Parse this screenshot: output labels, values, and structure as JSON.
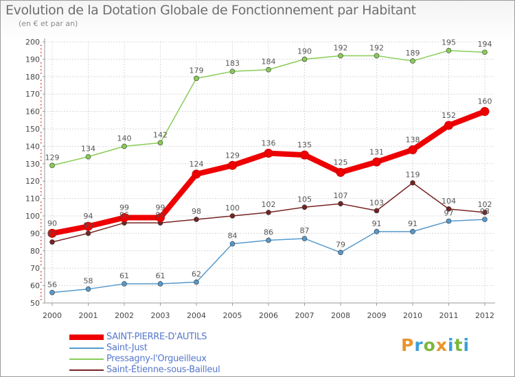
{
  "header": {
    "title": "Evolution de la Dotation Globale de Fonctionnement par Habitant",
    "subtitle": "(en € et par an)"
  },
  "brand": {
    "letters": [
      "P",
      "r",
      "o",
      "x",
      "i",
      "t",
      "i"
    ],
    "colors": [
      "#e8942c",
      "#3aa0d8",
      "#7ab83c",
      "#e8942c",
      "#3aa0d8",
      "#7ab83c",
      "#3aa0d8"
    ]
  },
  "chart_data": {
    "type": "line",
    "title": "Evolution de la Dotation Globale de Fonctionnement par Habitant",
    "subtitle": "(en € et par an)",
    "xlabel": "",
    "ylabel": "",
    "x": [
      "2000",
      "2001",
      "2002",
      "2003",
      "2004",
      "2005",
      "2006",
      "2007",
      "2008",
      "2009",
      "2010",
      "2011",
      "2012"
    ],
    "ylim": [
      50,
      200
    ],
    "yticks": [
      50,
      60,
      70,
      80,
      90,
      100,
      110,
      120,
      130,
      140,
      150,
      160,
      170,
      180,
      190,
      200
    ],
    "grid": true,
    "legend_position": "bottom-left",
    "series": [
      {
        "name": "SAINT-PIERRE-D'AUTILS",
        "color": "#ee0000",
        "values": [
          90,
          94,
          99,
          99,
          124,
          129,
          136,
          135,
          125,
          131,
          138,
          152,
          160
        ]
      },
      {
        "name": "Saint-Just",
        "color": "#5599cc",
        "values": [
          56,
          58,
          61,
          61,
          62,
          84,
          86,
          87,
          79,
          91,
          91,
          97,
          98
        ]
      },
      {
        "name": "Pressagny-l'Orgueilleux",
        "color": "#88cc55",
        "values": [
          129,
          134,
          140,
          142,
          179,
          183,
          184,
          190,
          192,
          192,
          189,
          195,
          194
        ]
      },
      {
        "name": "Saint-Étienne-sous-Bailleul",
        "color": "#772222",
        "values": [
          85,
          90,
          96,
          96,
          98,
          100,
          102,
          105,
          107,
          103,
          119,
          104,
          102
        ]
      }
    ]
  }
}
